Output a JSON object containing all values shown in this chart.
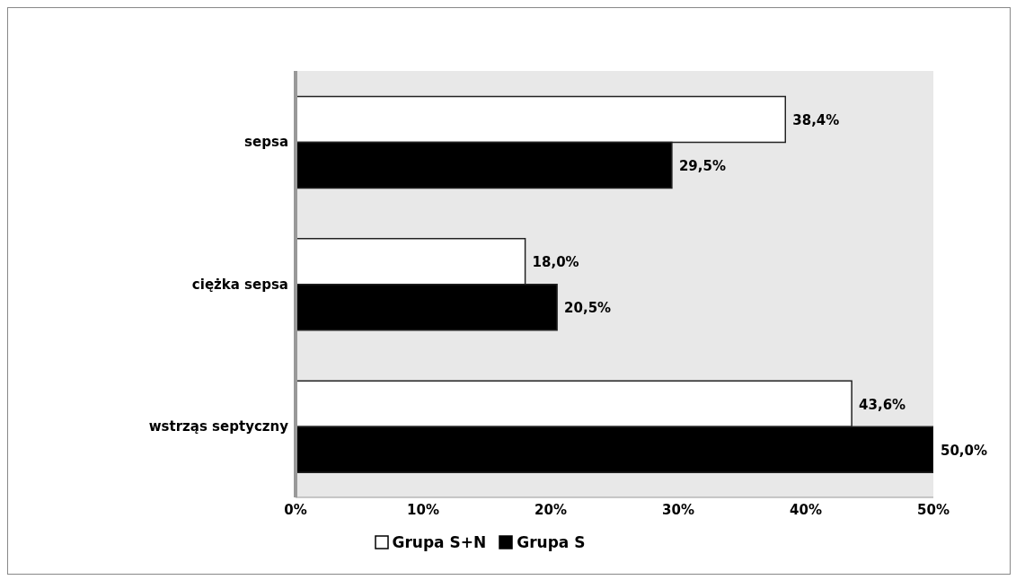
{
  "chart_data": {
    "type": "bar",
    "orientation": "horizontal",
    "categories": [
      "sepsa",
      "ciężka sepsa",
      "wstrząs septyczny"
    ],
    "series": [
      {
        "name": "Grupa S+N",
        "color": "#ffffff",
        "values": [
          38.4,
          18.0,
          43.6
        ],
        "value_labels": [
          "38,4%",
          "18,0%",
          "43,6%"
        ]
      },
      {
        "name": "Grupa S",
        "color": "#000000",
        "values": [
          29.5,
          20.5,
          50.0
        ],
        "value_labels": [
          "29,5%",
          "20,5%",
          "50,0%"
        ]
      }
    ],
    "xlim": [
      0,
      50
    ],
    "xticks": [
      {
        "value": 0,
        "label": "0%"
      },
      {
        "value": 10,
        "label": "10%"
      },
      {
        "value": 20,
        "label": "20%"
      },
      {
        "value": 30,
        "label": "30%"
      },
      {
        "value": 40,
        "label": "40%"
      },
      {
        "value": 50,
        "label": "50%"
      }
    ],
    "grid": false,
    "legend": "bottom"
  }
}
